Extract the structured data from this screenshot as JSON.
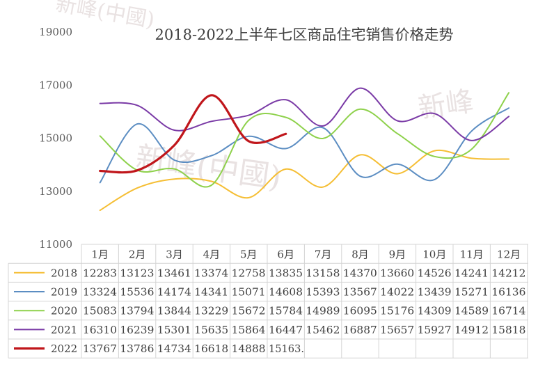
{
  "chart_data": {
    "type": "line",
    "title": "2018-2022上半年七区商品住宅销售价格走势",
    "categories": [
      "1月",
      "2月",
      "3月",
      "4月",
      "5月",
      "6月",
      "7月",
      "8月",
      "9月",
      "10月",
      "11月",
      "12月"
    ],
    "ylim": [
      11000,
      19000
    ],
    "yticks": [
      11000,
      13000,
      15000,
      17000,
      19000
    ],
    "xlabel": "",
    "ylabel": "",
    "grid": false,
    "legend": "data-table",
    "series": [
      {
        "name": "2018",
        "color": "#F5BE34",
        "values": [
          12283,
          13123,
          13461,
          13374,
          12758,
          13835,
          13158,
          14370,
          13660,
          14526,
          14241,
          14212
        ],
        "labels": [
          "12283",
          "13123",
          "13461",
          "13374",
          "12758",
          "13835",
          "13158",
          "14370",
          "13660",
          "14526",
          "14241",
          "14212"
        ]
      },
      {
        "name": "2019",
        "color": "#5B8DC2",
        "values": [
          13324,
          15536,
          14174,
          14341,
          15071,
          14608,
          15393,
          13567,
          14022,
          13439,
          15271,
          16136
        ],
        "labels": [
          "13324",
          "15536",
          "14174",
          "14341",
          "15071",
          "14608",
          "15393",
          "13567",
          "14022",
          "13439",
          "15271",
          "16136"
        ]
      },
      {
        "name": "2020",
        "color": "#8ED14B",
        "values": [
          15083,
          13794,
          13844,
          13229,
          15672,
          15784,
          14989,
          16095,
          15176,
          14309,
          14589,
          16714
        ],
        "labels": [
          "15083",
          "13794",
          "13844",
          "13229",
          "15672",
          "15784",
          "14989",
          "16095",
          "15176",
          "14309",
          "14589",
          "16714"
        ]
      },
      {
        "name": "2021",
        "color": "#7A3AA6",
        "values": [
          16310,
          16239,
          15301,
          15635,
          15864,
          16447,
          15462,
          16887,
          15657,
          15927,
          14912,
          15818
        ],
        "labels": [
          "16310",
          "16239",
          "15301",
          "15635",
          "15864",
          "16447",
          "15462",
          "16887",
          "15657",
          "15927",
          "14912",
          "15818"
        ]
      },
      {
        "name": "2022",
        "color": "#C0161B",
        "values": [
          13767,
          13786,
          14734,
          16618,
          14888,
          15163,
          null,
          null,
          null,
          null,
          null,
          null
        ],
        "labels": [
          "13767",
          "13786",
          "14734",
          "16618",
          "14888",
          "15163.",
          "",
          "",
          "",
          "",
          "",
          ""
        ]
      }
    ]
  }
}
